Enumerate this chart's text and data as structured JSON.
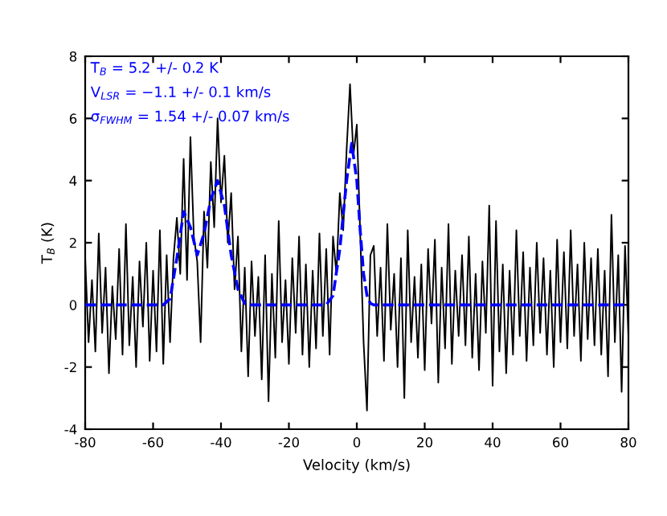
{
  "chart_data": {
    "type": "line",
    "xlabel": "Velocity (km/s)",
    "ylabel": "T$_{B}$ (K)",
    "xlim": [
      -80,
      80
    ],
    "xticks": [
      -80,
      -60,
      -40,
      -20,
      0,
      20,
      40,
      60,
      80
    ],
    "ylim": [
      -4,
      8
    ],
    "yticks": [
      -4,
      -2,
      0,
      2,
      4,
      6,
      8
    ],
    "grid": false,
    "legend": false,
    "marker": "none",
    "annotations": [
      "T$_{B}$ = 5.2 +/- 0.2 K",
      "V$_{LSR}$ = −1.1 +/- 0.1 km/s",
      "σ$_{FWHM}$ = 1.54 +/- 0.07 km/s"
    ],
    "series": [
      {
        "color": "#000000",
        "line_style": "solid",
        "x": [
          -80,
          -79,
          -78,
          -77,
          -76,
          -75,
          -74,
          -73,
          -72,
          -71,
          -70,
          -69,
          -68,
          -67,
          -66,
          -65,
          -64,
          -63,
          -62,
          -61,
          -60,
          -59,
          -58,
          -57,
          -56,
          -55,
          -54,
          -53,
          -52,
          -51,
          -50,
          -49,
          -48,
          -47,
          -46,
          -45,
          -44,
          -43,
          -42,
          -41,
          -40,
          -39,
          -38,
          -37,
          -36,
          -35,
          -34,
          -33,
          -32,
          -31,
          -30,
          -29,
          -28,
          -27,
          -26,
          -25,
          -24,
          -23,
          -22,
          -21,
          -20,
          -19,
          -18,
          -17,
          -16,
          -15,
          -14,
          -13,
          -12,
          -11,
          -10,
          -9,
          -8,
          -7,
          -6,
          -5,
          -4,
          -3,
          -2,
          -1,
          0,
          1,
          2,
          3,
          4,
          5,
          6,
          7,
          8,
          9,
          10,
          11,
          12,
          13,
          14,
          15,
          16,
          17,
          18,
          19,
          20,
          21,
          22,
          23,
          24,
          25,
          26,
          27,
          28,
          29,
          30,
          31,
          32,
          33,
          34,
          35,
          36,
          37,
          38,
          39,
          40,
          41,
          42,
          43,
          44,
          45,
          46,
          47,
          48,
          49,
          50,
          51,
          52,
          53,
          54,
          55,
          56,
          57,
          58,
          59,
          60,
          61,
          62,
          63,
          64,
          65,
          66,
          67,
          68,
          69,
          70,
          71,
          72,
          73,
          74,
          75,
          76,
          77,
          78,
          79,
          80
        ],
        "values": [
          1.5,
          -1.2,
          0.8,
          -1.5,
          2.3,
          -0.9,
          1.2,
          -2.2,
          0.6,
          -1.1,
          1.8,
          -1.6,
          2.6,
          -1.3,
          0.9,
          -2.0,
          1.4,
          -0.7,
          2.0,
          -1.8,
          1.1,
          -1.5,
          2.4,
          -1.9,
          1.6,
          -1.2,
          1.5,
          2.8,
          1.0,
          4.7,
          0.8,
          5.4,
          2.2,
          1.4,
          -1.2,
          3.0,
          1.2,
          4.6,
          2.5,
          6.0,
          3.3,
          4.8,
          2.0,
          3.6,
          0.5,
          2.2,
          -1.5,
          1.2,
          -2.3,
          1.4,
          -1.0,
          0.9,
          -2.4,
          1.6,
          -3.1,
          1.0,
          -1.7,
          2.7,
          -1.2,
          0.8,
          -1.9,
          1.5,
          -0.9,
          2.2,
          -1.6,
          1.3,
          -2.0,
          1.1,
          -1.4,
          2.3,
          -1.0,
          1.8,
          -1.6,
          2.2,
          1.0,
          3.6,
          2.4,
          5.0,
          7.1,
          4.8,
          5.8,
          2.3,
          -1.2,
          -3.4,
          1.6,
          1.9,
          -1.0,
          1.2,
          -1.8,
          2.6,
          -0.8,
          1.0,
          -2.0,
          1.5,
          -3.0,
          2.4,
          -1.2,
          0.9,
          -1.7,
          1.3,
          -2.1,
          1.8,
          -0.6,
          2.1,
          -2.5,
          1.2,
          -1.4,
          2.6,
          -1.9,
          1.1,
          -1.0,
          1.6,
          -1.3,
          2.2,
          -1.7,
          1.0,
          -2.1,
          1.4,
          -0.9,
          3.2,
          -2.6,
          2.7,
          -1.5,
          1.3,
          -2.2,
          1.1,
          -1.6,
          2.4,
          -1.0,
          1.7,
          -1.8,
          1.2,
          -1.3,
          2.0,
          -0.9,
          1.5,
          -1.6,
          1.1,
          -2.0,
          2.1,
          -1.2,
          1.7,
          -1.4,
          2.4,
          -1.0,
          1.3,
          -1.8,
          2.0,
          -1.1,
          1.5,
          -1.3,
          1.8,
          -1.6,
          1.1,
          -2.3,
          2.9,
          -1.2,
          1.6,
          -2.8,
          1.9,
          -1.0
        ]
      },
      {
        "color": "#0000ff",
        "line_style": "dashed",
        "x": [
          -80,
          -57,
          -55,
          -53,
          -51,
          -49,
          -47,
          -45,
          -43,
          -41,
          -39,
          -37,
          -35,
          -33,
          -31,
          -9,
          -7,
          -5,
          -3,
          -1.5,
          0,
          1,
          2,
          3,
          4,
          5,
          80
        ],
        "values": [
          0,
          0,
          0.2,
          1.5,
          3.0,
          2.5,
          1.6,
          2.3,
          3.4,
          4.0,
          3.2,
          1.6,
          0.5,
          0.05,
          0,
          0,
          0.3,
          1.8,
          4.0,
          5.2,
          4.0,
          2.4,
          1.0,
          0.3,
          0.05,
          0,
          0
        ]
      }
    ]
  }
}
